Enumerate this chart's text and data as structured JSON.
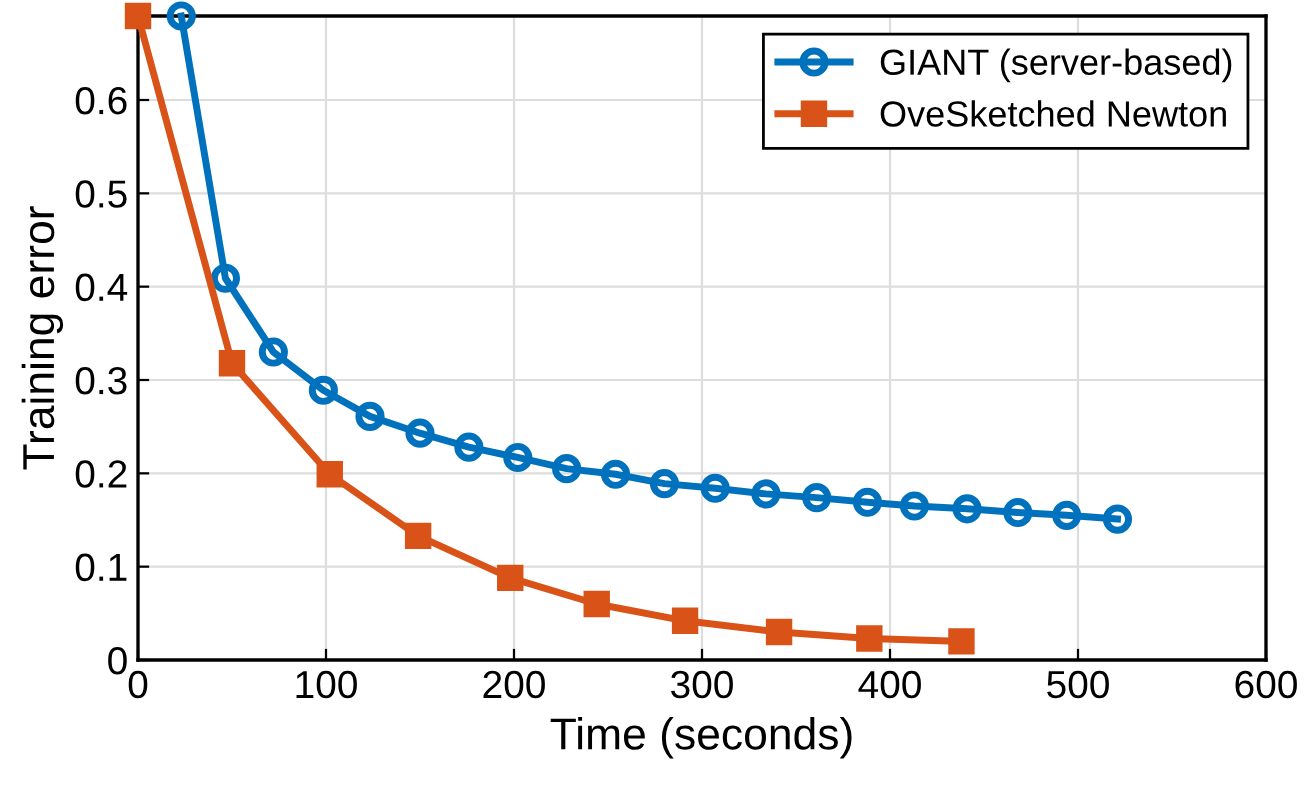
{
  "chart_data": {
    "type": "line",
    "xlabel": "Time (seconds)",
    "ylabel": "Training error",
    "xlim": [
      0,
      600
    ],
    "xticks": [
      0,
      100,
      200,
      300,
      400,
      500,
      600
    ],
    "ylim": [
      0,
      0.69
    ],
    "yticks": [
      0,
      0.1,
      0.2,
      0.3,
      0.4,
      0.5,
      0.6
    ],
    "grid": true,
    "legend": "top right",
    "line_style": "solid",
    "series": [
      {
        "name": "GIANT (server-based)",
        "color": "#0072bd",
        "marker": "circle",
        "x": [
          23,
          46.5,
          72,
          98.6,
          123.4,
          150,
          176,
          202,
          228,
          254,
          280,
          307,
          334,
          361,
          388,
          413,
          441,
          468,
          494,
          521
        ],
        "values": [
          0.69,
          0.409,
          0.33,
          0.289,
          0.261,
          0.243,
          0.228,
          0.217,
          0.205,
          0.199,
          0.189,
          0.184,
          0.178,
          0.174,
          0.169,
          0.165,
          0.162,
          0.158,
          0.155,
          0.151
        ]
      },
      {
        "name": "OveSketched Newton",
        "color": "#d95319",
        "marker": "square",
        "x": [
          0,
          50,
          102,
          149,
          198,
          244,
          291,
          341,
          389,
          438
        ],
        "values": [
          0.69,
          0.318,
          0.199,
          0.133,
          0.088,
          0.06,
          0.042,
          0.03,
          0.023,
          0.02
        ]
      }
    ]
  }
}
